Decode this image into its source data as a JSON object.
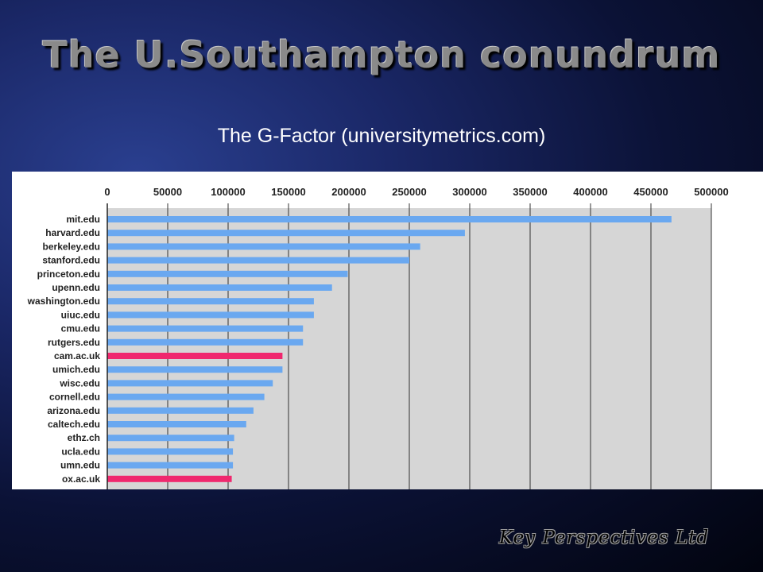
{
  "slide": {
    "title": "The U.Southampton conundrum",
    "subtitle": "The G-Factor (universitymetrics.com)",
    "footer": "Key Perspectives Ltd"
  },
  "colors": {
    "default_bar": "#6aa8f0",
    "highlight_bar": "#f0286e",
    "plot_background": "#d6d6d6",
    "grid": "#333333"
  },
  "chart_data": {
    "type": "bar",
    "orientation": "horizontal",
    "categories": [
      "mit.edu",
      "harvard.edu",
      "berkeley.edu",
      "stanford.edu",
      "princeton.edu",
      "upenn.edu",
      "washington.edu",
      "uiuc.edu",
      "cmu.edu",
      "rutgers.edu",
      "cam.ac.uk",
      "umich.edu",
      "wisc.edu",
      "cornell.edu",
      "arizona.edu",
      "caltech.edu",
      "ethz.ch",
      "ucla.edu",
      "umn.edu",
      "ox.ac.uk"
    ],
    "values": [
      467000,
      296000,
      259000,
      250000,
      199000,
      186000,
      171000,
      171000,
      162000,
      162000,
      145000,
      145000,
      137000,
      130000,
      121000,
      115000,
      105000,
      104000,
      104000,
      103000
    ],
    "highlighted": [
      "cam.ac.uk",
      "ox.ac.uk"
    ],
    "xticks": [
      "0",
      "50000",
      "100000",
      "150000",
      "200000",
      "250000",
      "300000",
      "350000",
      "400000",
      "450000",
      "500000"
    ],
    "xlim": [
      0,
      500000
    ],
    "grid": true,
    "title": "",
    "xlabel": "",
    "ylabel": ""
  }
}
